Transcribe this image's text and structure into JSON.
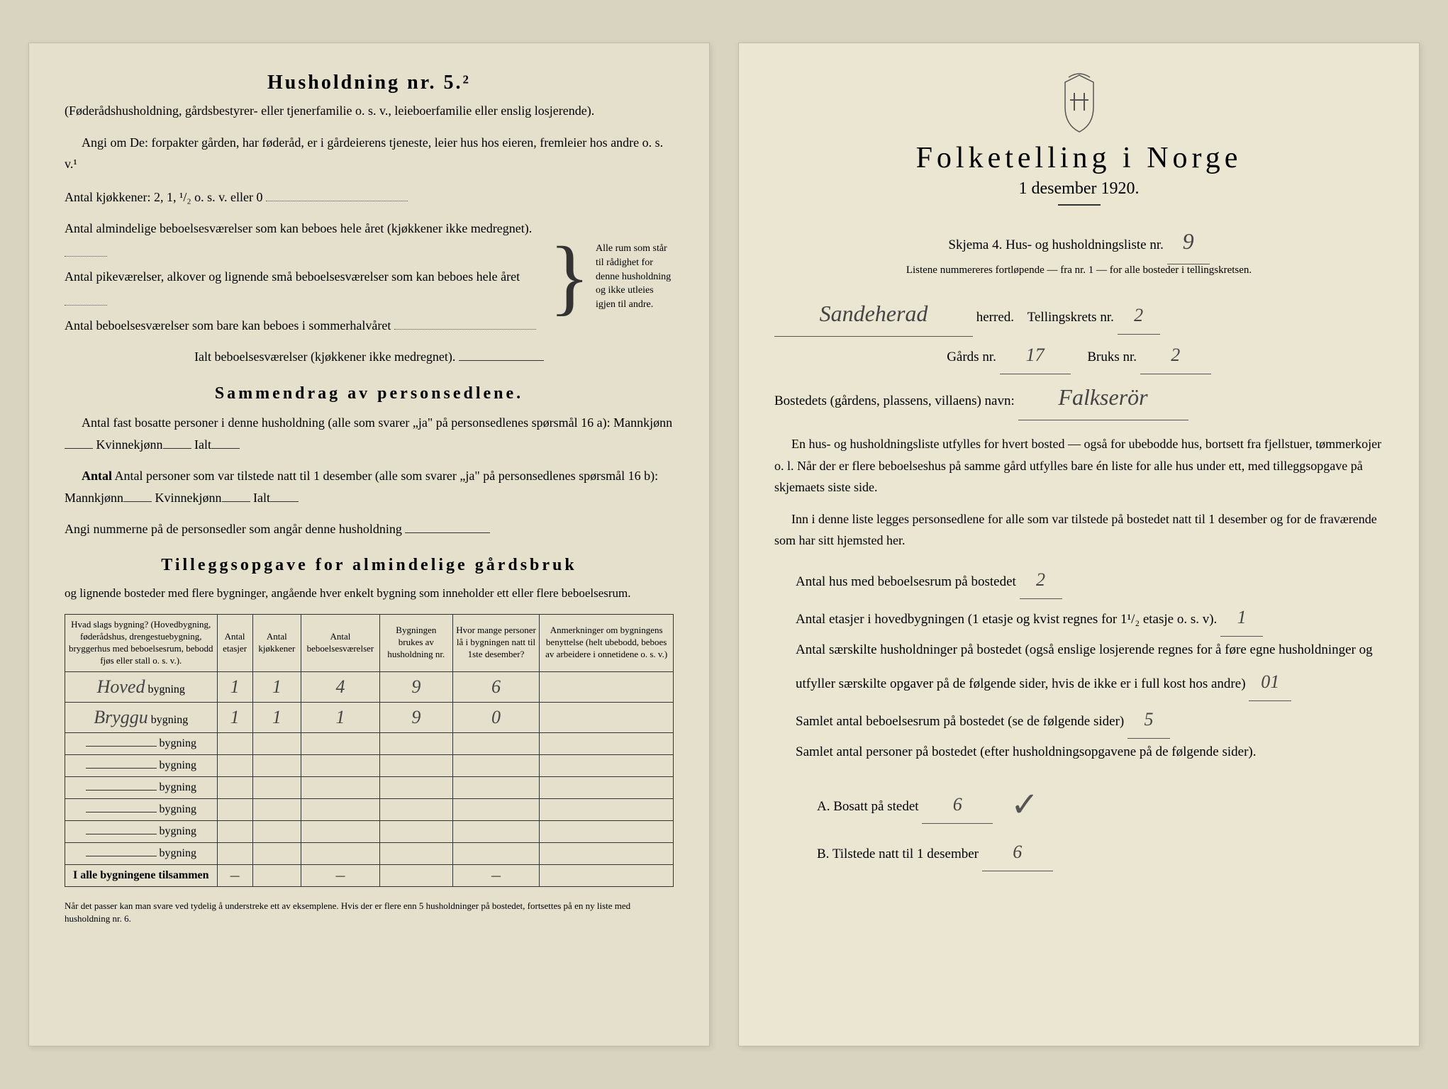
{
  "left": {
    "heading": "Husholdning nr. 5.²",
    "intro1": "(Føderådshusholdning, gårdsbestyrer- eller tjenerfamilie o. s. v., leieboerfamilie eller enslig losjerende).",
    "intro2": "Angi om De: forpakter gården, har føderåd, er i gårdeierens tjeneste, leier hus hos eieren, fremleier hos andre o. s. v.¹",
    "kitchens_label": "Antal kjøkkener: 2, 1, ¹/₂ o. s. v. eller 0",
    "rooms1": "Antal almindelige beboelsesværelser som kan beboes hele året (kjøkkener ikke medregnet).",
    "rooms2": "Antal pikeværelser, alkover og lignende små beboelsesværelser som kan beboes hele året",
    "rooms3": "Antal beboelsesværelser som bare kan beboes i sommerhalvåret",
    "brace_text": "Alle rum som står til rådighet for denne husholdning og ikke utleies igjen til andre.",
    "ialt_label": "Ialt beboelsesværelser (kjøkkener ikke medregnet).",
    "summary_heading": "Sammendrag av personsedlene.",
    "summary1": "Antal fast bosatte personer i denne husholdning (alle som svarer „ja\" på personsedlenes spørsmål 16 a):",
    "mann": "Mannkjønn",
    "kvinne": "Kvinnekjønn",
    "ialt": "Ialt",
    "summary2": "Antal personer som var tilstede natt til 1 desember (alle som svarer „ja\" på personsedlenes spørsmål 16 b):",
    "summary3": "Angi nummerne på de personsedler som angår denne husholdning",
    "tillegg_heading": "Tilleggsopgave for almindelige gårdsbruk",
    "tillegg_sub": "og lignende bosteder med flere bygninger, angående hver enkelt bygning som inneholder ett eller flere beboelsesrum.",
    "table": {
      "cols": [
        "Hvad slags bygning?\n(Hovedbygning, føderådshus, drengestuebygning, bryggerhus med beboelsesrum, bebodd fjøs eller stall o. s. v.).",
        "Antal etasjer",
        "Antal kjøkkener",
        "Antal beboelsesværelser",
        "Bygningen brukes av husholdning nr.",
        "Hvor mange personer lå i bygningen natt til 1ste desember?",
        "Anmerkninger om bygningens benyttelse (helt ubebodd, beboes av arbeidere i onnetidene o. s. v.)"
      ],
      "row_suffix": "bygning",
      "rows": [
        {
          "name": "Hoved",
          "vals": [
            "1",
            "1",
            "4",
            "9",
            "6",
            ""
          ]
        },
        {
          "name": "Bryggu",
          "vals": [
            "1",
            "1",
            "1",
            "9",
            "0",
            ""
          ]
        },
        {
          "name": "",
          "vals": [
            "",
            "",
            "",
            "",
            "",
            ""
          ]
        },
        {
          "name": "",
          "vals": [
            "",
            "",
            "",
            "",
            "",
            ""
          ]
        },
        {
          "name": "",
          "vals": [
            "",
            "",
            "",
            "",
            "",
            ""
          ]
        },
        {
          "name": "",
          "vals": [
            "",
            "",
            "",
            "",
            "",
            ""
          ]
        },
        {
          "name": "",
          "vals": [
            "",
            "",
            "",
            "",
            "",
            ""
          ]
        },
        {
          "name": "",
          "vals": [
            "",
            "",
            "",
            "",
            "",
            ""
          ]
        }
      ],
      "total_label": "I alle bygningene tilsammen",
      "total_vals": [
        "—",
        "",
        "—",
        "",
        "—",
        ""
      ]
    },
    "footnote": "Når det passer kan man svare ved tydelig å understreke ett av eksemplene.\nHvis der er flere enn 5 husholdninger på bostedet, fortsettes på en ny liste med husholdning nr. 6."
  },
  "right": {
    "title": "Folketelling i Norge",
    "date": "1 desember 1920.",
    "skjema_label": "Skjema 4.  Hus- og husholdningsliste nr.",
    "skjema_nr": "9",
    "listene": "Listene nummereres fortløpende — fra nr. 1 — for alle bosteder i tellingskretsen.",
    "herred_hw": "Sandeherad",
    "herred_label": "herred.",
    "krets_label": "Tellingskrets nr.",
    "krets_nr": "2",
    "gards_label": "Gårds nr.",
    "gards_nr": "17",
    "bruks_label": "Bruks nr.",
    "bruks_nr": "2",
    "bosted_label": "Bostedets (gårdens, plassens, villaens) navn:",
    "bosted_hw": "Falkserör",
    "body1": "En hus- og husholdningsliste utfylles for hvert bosted — også for ubebodde hus, bortsett fra fjellstuer, tømmerkojer o. l.  Når der er flere beboelseshus på samme gård utfylles bare én liste for alle hus under ett, med tilleggsopgave på skjemaets siste side.",
    "body2": "Inn i denne liste legges personsedlene for alle som var tilstede på bostedet natt til 1 desember og for de fraværende som har sitt hjemsted her.",
    "q1": "Antal hus med beboelsesrum på bostedet",
    "q1_val": "2",
    "q2a": "Antal etasjer i hovedbygningen (1 etasje og kvist regnes for 1¹/₂ etasje o. s. v).",
    "q2_val": "1",
    "q3": "Antal særskilte husholdninger på bostedet (også enslige losjerende regnes for å føre egne husholdninger og utfyller særskilte opgaver på de følgende sider, hvis de ikke er i full kost hos andre)",
    "q3_val": "01",
    "q4": "Samlet antal beboelsesrum på bostedet (se de følgende sider)",
    "q4_val": "5",
    "q5": "Samlet antal personer på bostedet (efter husholdningsopgavene på de følgende sider).",
    "qA": "A.  Bosatt på stedet",
    "qA_val": "6",
    "qB": "B.  Tilstede natt til 1 desember",
    "qB_val": "6"
  },
  "colors": {
    "paper": "#e8e4d0",
    "ink": "#2a2a2a",
    "hw": "#444444"
  }
}
